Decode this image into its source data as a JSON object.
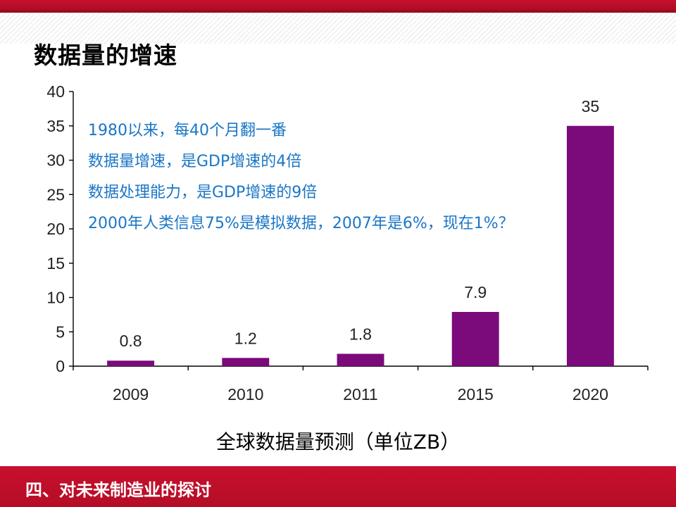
{
  "slide": {
    "title": "数据量的增速",
    "footer": "四、对未来制造业的探讨",
    "caption": "全球数据量预测（单位ZB）",
    "annotations": [
      "1980以来，每40个月翻一番",
      "数据量增速，是GDP增速的4倍",
      "数据处理能力，是GDP增速的9倍",
      "2000年人类信息75%是模拟数据，2007年是6%，现在1%？"
    ]
  },
  "colors": {
    "bar": "#7b0a7b",
    "annotation_text": "#1a76c6",
    "header_band": "#c8102e"
  },
  "chart_data": {
    "type": "bar",
    "categories": [
      "2009",
      "2010",
      "2011",
      "2015",
      "2020"
    ],
    "values": [
      0.8,
      1.2,
      1.8,
      7.9,
      35
    ],
    "value_labels": [
      "0.8",
      "1.2",
      "1.8",
      "7.9",
      "35"
    ],
    "ylim": [
      0,
      40
    ],
    "yticks": [
      0,
      5,
      10,
      15,
      20,
      25,
      30,
      35,
      40
    ],
    "ytick_labels": [
      "0",
      "5",
      "10",
      "15",
      "20",
      "25",
      "30",
      "35",
      "40"
    ],
    "grid": false,
    "title": "",
    "xlabel": "",
    "ylabel": ""
  }
}
